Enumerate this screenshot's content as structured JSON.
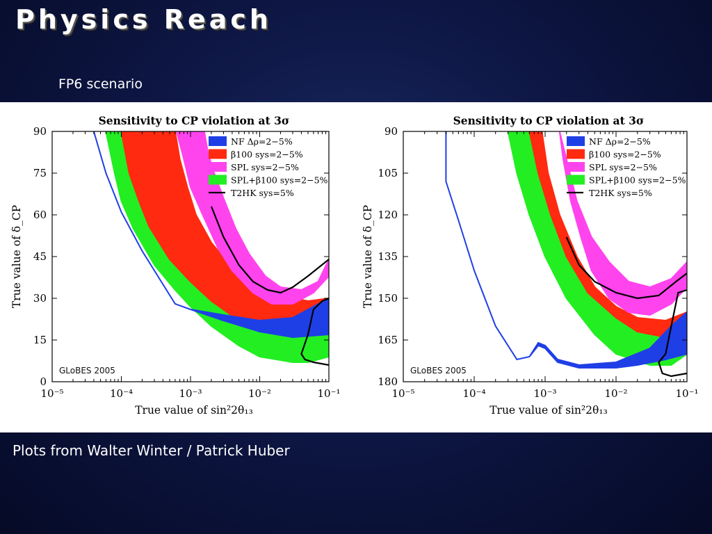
{
  "slide": {
    "title": "Physics Reach",
    "subtitle": "FP6 scenario",
    "footer": "Plots from Walter Winter / Patrick Huber"
  },
  "legend_colors": {
    "NF": "#1f3fe6",
    "beta100": "#ff2a10",
    "SPL": "#ff44ee",
    "SPL_beta100": "#22ee22",
    "T2HK": "#000000"
  },
  "chart_data": [
    {
      "type": "area",
      "title": "Sensitivity to CP violation at 3σ",
      "xlabel": "True value of sin²2θ₁₃",
      "ylabel": "True value of δ_CP",
      "xscale": "log",
      "xlim": [
        1e-05,
        0.1
      ],
      "ylim": [
        0,
        90
      ],
      "xticks": [
        "10⁻⁵",
        "10⁻⁴",
        "10⁻³",
        "10⁻²",
        "10⁻¹"
      ],
      "yticks": [
        "0",
        "15",
        "30",
        "45",
        "60",
        "75",
        "90"
      ],
      "watermark": "GLoBES 2005",
      "legend_position": "top-right",
      "legend": [
        "NF Δρ=2−5%",
        "β100 sys=2−5%",
        "SPL sys=2−5%",
        "SPL+β100 sys=2−5%",
        "T2HK sys=5%"
      ],
      "series": [
        {
          "name": "SPL+β100 sys=2−5%",
          "color": "#22ee22",
          "outer": [
            [
              6e-05,
              90
            ],
            [
              8e-05,
              75
            ],
            [
              0.0001,
              65
            ],
            [
              0.00015,
              55
            ],
            [
              0.0003,
              42
            ],
            [
              0.0006,
              33
            ],
            [
              0.001,
              27
            ],
            [
              0.002,
              20
            ],
            [
              0.005,
              13
            ],
            [
              0.01,
              9
            ],
            [
              0.03,
              7
            ],
            [
              0.05,
              7
            ],
            [
              0.1,
              9
            ]
          ],
          "inner": [
            [
              0.0001,
              90
            ],
            [
              0.00013,
              75
            ],
            [
              0.00018,
              65
            ],
            [
              0.00025,
              56
            ],
            [
              0.0005,
              44
            ],
            [
              0.001,
              36
            ],
            [
              0.002,
              29
            ],
            [
              0.005,
              22
            ],
            [
              0.01,
              19
            ],
            [
              0.03,
              17
            ],
            [
              0.05,
              17
            ],
            [
              0.1,
              20
            ]
          ]
        },
        {
          "name": "β100 sys=2−5%",
          "color": "#ff2a10",
          "outer": [
            [
              0.0001,
              90
            ],
            [
              0.00013,
              75
            ],
            [
              0.00018,
              65
            ],
            [
              0.00025,
              56
            ],
            [
              0.0005,
              44
            ],
            [
              0.001,
              36
            ],
            [
              0.002,
              29
            ],
            [
              0.005,
              22
            ],
            [
              0.01,
              19
            ],
            [
              0.03,
              17
            ],
            [
              0.05,
              17
            ],
            [
              0.1,
              20
            ]
          ],
          "inner": [
            [
              0.0006,
              90
            ],
            [
              0.0007,
              80
            ],
            [
              0.0009,
              70
            ],
            [
              0.0012,
              60
            ],
            [
              0.002,
              50
            ],
            [
              0.004,
              41
            ],
            [
              0.008,
              35
            ],
            [
              0.02,
              31
            ],
            [
              0.05,
              29
            ],
            [
              0.1,
              30
            ]
          ]
        },
        {
          "name": "SPL sys=2−5%",
          "color": "#ff44ee",
          "outer": [
            [
              0.00063,
              90
            ],
            [
              0.0008,
              80
            ],
            [
              0.001,
              70
            ],
            [
              0.0015,
              60
            ],
            [
              0.0025,
              48
            ],
            [
              0.004,
              40
            ],
            [
              0.008,
              32
            ],
            [
              0.015,
              28
            ],
            [
              0.03,
              28
            ],
            [
              0.06,
              32
            ],
            [
              0.1,
              38
            ]
          ],
          "inner": [
            [
              0.00158,
              90
            ],
            [
              0.0018,
              82
            ],
            [
              0.0022,
              75
            ],
            [
              0.003,
              66
            ],
            [
              0.0045,
              55
            ],
            [
              0.007,
              46
            ],
            [
              0.012,
              38
            ],
            [
              0.02,
              34
            ],
            [
              0.04,
              33
            ],
            [
              0.07,
              36
            ],
            [
              0.1,
              44
            ]
          ]
        },
        {
          "name": "NF Δρ=2−5%",
          "color": "#1f3fe6",
          "outer": [
            [
              4e-05,
              90
            ],
            [
              6e-05,
              75
            ],
            [
              0.0001,
              61
            ],
            [
              0.0002,
              47
            ],
            [
              0.0004,
              35
            ],
            [
              0.0006,
              28
            ],
            [
              0.001,
              26
            ],
            [
              0.003,
              22
            ],
            [
              0.01,
              18
            ],
            [
              0.03,
              16
            ],
            [
              0.1,
              17
            ]
          ],
          "inner": [
            [
              4e-05,
              90
            ],
            [
              6e-05,
              75
            ],
            [
              0.0001,
              61
            ],
            [
              0.0002,
              47
            ],
            [
              0.0004,
              35
            ],
            [
              0.0006,
              28
            ],
            [
              0.001,
              26
            ],
            [
              0.003,
              24
            ],
            [
              0.01,
              22
            ],
            [
              0.03,
              23
            ],
            [
              0.1,
              30
            ]
          ]
        },
        {
          "name": "T2HK sys=5%",
          "color": "#000000",
          "line": [
            [
              0.002,
              63
            ],
            [
              0.003,
              52
            ],
            [
              0.005,
              42
            ],
            [
              0.008,
              36
            ],
            [
              0.013,
              33
            ],
            [
              0.02,
              32
            ],
            [
              0.03,
              34
            ],
            [
              0.05,
              38
            ],
            [
              0.1,
              44
            ]
          ],
          "line2": [
            [
              0.1,
              30
            ],
            [
              0.08,
              29
            ],
            [
              0.06,
              26
            ],
            [
              0.05,
              17
            ],
            [
              0.04,
              10
            ],
            [
              0.045,
              8
            ],
            [
              0.06,
              7
            ],
            [
              0.1,
              6
            ]
          ]
        }
      ]
    },
    {
      "type": "area",
      "title": "Sensitivity to CP violation at 3σ",
      "xlabel": "True value of sin²2θ₁₃",
      "ylabel": "True value of δ_CP",
      "xscale": "log",
      "xlim": [
        1e-05,
        0.1
      ],
      "ylim": [
        90,
        180
      ],
      "xticks": [
        "10⁻⁵",
        "10⁻⁴",
        "10⁻³",
        "10⁻²",
        "10⁻¹"
      ],
      "yticks": [
        "90",
        "105",
        "120",
        "135",
        "150",
        "165",
        "180"
      ],
      "watermark": "GLoBES 2005",
      "legend_position": "top-right",
      "legend": [
        "NF Δρ=2−5%",
        "β100 sys=2−5%",
        "SPL sys=2−5%",
        "SPL+β100 sys=2−5%",
        "T2HK sys=5%"
      ],
      "series": [
        {
          "name": "SPL+β100 sys=2−5%",
          "color": "#22ee22",
          "outer": [
            [
              0.0003,
              90
            ],
            [
              0.0004,
              105
            ],
            [
              0.0006,
              120
            ],
            [
              0.001,
              135
            ],
            [
              0.002,
              150
            ],
            [
              0.005,
              163
            ],
            [
              0.01,
              170
            ],
            [
              0.03,
              174
            ],
            [
              0.06,
              174
            ],
            [
              0.1,
              170
            ]
          ],
          "inner": [
            [
              0.0006,
              90
            ],
            [
              0.0008,
              105
            ],
            [
              0.0012,
              120
            ],
            [
              0.002,
              135
            ],
            [
              0.004,
              148
            ],
            [
              0.01,
              157
            ],
            [
              0.02,
              162
            ],
            [
              0.05,
              164
            ],
            [
              0.1,
              161
            ]
          ]
        },
        {
          "name": "β100 sys=2−5%",
          "color": "#ff2a10",
          "outer": [
            [
              0.0006,
              90
            ],
            [
              0.0008,
              105
            ],
            [
              0.0012,
              120
            ],
            [
              0.002,
              135
            ],
            [
              0.004,
              148
            ],
            [
              0.01,
              157
            ],
            [
              0.02,
              162
            ],
            [
              0.05,
              164
            ],
            [
              0.1,
              161
            ]
          ],
          "inner": [
            [
              0.0009,
              90
            ],
            [
              0.0011,
              105
            ],
            [
              0.0016,
              120
            ],
            [
              0.0028,
              135
            ],
            [
              0.005,
              146
            ],
            [
              0.01,
              153
            ],
            [
              0.02,
              157
            ],
            [
              0.05,
              158
            ],
            [
              0.1,
              155
            ]
          ]
        },
        {
          "name": "SPL sys=2−5%",
          "color": "#ff44ee",
          "outer": [
            [
              0.0016,
              90
            ],
            [
              0.0018,
              100
            ],
            [
              0.0023,
              115
            ],
            [
              0.0032,
              128
            ],
            [
              0.0045,
              140
            ],
            [
              0.008,
              150
            ],
            [
              0.015,
              155
            ],
            [
              0.03,
              156
            ],
            [
              0.06,
              152
            ],
            [
              0.1,
              146
            ]
          ],
          "inner": [
            [
              0.0016,
              90
            ],
            [
              0.002,
              100
            ],
            [
              0.0028,
              115
            ],
            [
              0.0045,
              128
            ],
            [
              0.008,
              137
            ],
            [
              0.015,
              144
            ],
            [
              0.03,
              146
            ],
            [
              0.06,
              143
            ],
            [
              0.1,
              137
            ]
          ]
        },
        {
          "name": "NF Δρ=2−5%",
          "color": "#1f3fe6",
          "outer": [
            [
              4e-05,
              90
            ],
            [
              4e-05,
              108
            ],
            [
              6e-05,
              122
            ],
            [
              0.0001,
              140
            ],
            [
              0.0002,
              160
            ],
            [
              0.0004,
              172
            ],
            [
              0.0006,
              171
            ],
            [
              0.0008,
              166
            ],
            [
              0.001,
              167
            ],
            [
              0.0015,
              172
            ],
            [
              0.003,
              174
            ],
            [
              0.01,
              173
            ],
            [
              0.03,
              168
            ],
            [
              0.06,
              160
            ],
            [
              0.1,
              155
            ]
          ],
          "inner": [
            [
              4e-05,
              90
            ],
            [
              4e-05,
              108
            ],
            [
              6e-05,
              122
            ],
            [
              0.0001,
              140
            ],
            [
              0.0002,
              160
            ],
            [
              0.0004,
              172
            ],
            [
              0.0006,
              171
            ],
            [
              0.0008,
              167
            ],
            [
              0.001,
              168
            ],
            [
              0.0015,
              173
            ],
            [
              0.003,
              175
            ],
            [
              0.01,
              175
            ],
            [
              0.02,
              174
            ],
            [
              0.05,
              172
            ],
            [
              0.1,
              170
            ]
          ]
        },
        {
          "name": "T2HK sys=5%",
          "color": "#000000",
          "line": [
            [
              0.002,
              128
            ],
            [
              0.003,
              138
            ],
            [
              0.005,
              144
            ],
            [
              0.01,
              148
            ],
            [
              0.02,
              150
            ],
            [
              0.04,
              149
            ],
            [
              0.07,
              144
            ],
            [
              0.1,
              141
            ]
          ],
          "line2": [
            [
              0.1,
              147
            ],
            [
              0.075,
              148
            ],
            [
              0.06,
              160
            ],
            [
              0.05,
              170
            ],
            [
              0.04,
              173
            ],
            [
              0.045,
              177
            ],
            [
              0.06,
              178
            ],
            [
              0.1,
              177
            ]
          ]
        }
      ]
    }
  ]
}
